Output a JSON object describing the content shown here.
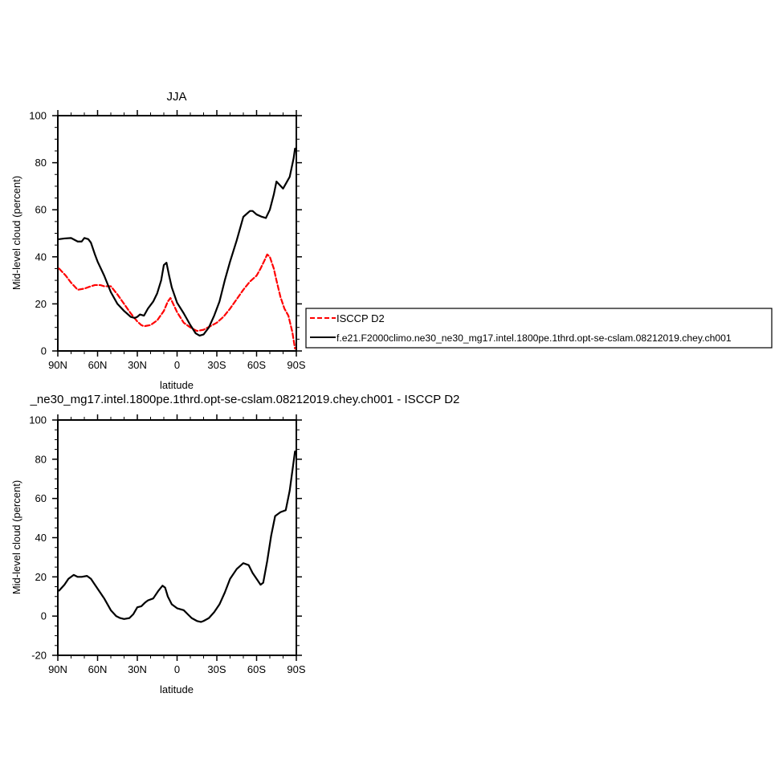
{
  "chart_data": [
    {
      "type": "line",
      "title": "JJA",
      "xlabel": "latitude",
      "ylabel": "Mid-level cloud (percent)",
      "xlim": [
        -90,
        90
      ],
      "ylim": [
        0,
        100
      ],
      "xticks": [
        -90,
        -60,
        -30,
        0,
        30,
        60,
        90
      ],
      "xtick_labels": [
        "90N",
        "60N",
        "30N",
        "0",
        "30S",
        "60S",
        "90S"
      ],
      "yticks": [
        0,
        20,
        40,
        60,
        80,
        100
      ],
      "ytick_labels": [
        "0",
        "20",
        "40",
        "60",
        "80",
        "100"
      ],
      "grid": false,
      "legend_position": "outside-right",
      "series": [
        {
          "name": "ISCCP D2",
          "color": "#ff0000",
          "dash": "dashed",
          "x": [
            -89,
            -84,
            -80,
            -75,
            -70,
            -65,
            -62,
            -58,
            -55,
            -50,
            -45,
            -40,
            -35,
            -30,
            -27,
            -25,
            -20,
            -15,
            -10,
            -7,
            -5,
            0,
            5,
            10,
            15,
            20,
            25,
            30,
            35,
            40,
            45,
            50,
            55,
            58,
            60,
            63,
            66,
            68,
            70,
            73,
            75,
            78,
            81,
            84,
            87,
            89
          ],
          "y": [
            35,
            32,
            29,
            26,
            26.5,
            27.5,
            28,
            28,
            27.5,
            27.5,
            24,
            20,
            16,
            12.5,
            11,
            10.5,
            11,
            13,
            17,
            21,
            22.5,
            16.5,
            12,
            10,
            8.5,
            9,
            10.5,
            12,
            14.5,
            18,
            22,
            26,
            29.5,
            31,
            32,
            35,
            38.5,
            41,
            40,
            35,
            30,
            23,
            18,
            15,
            8,
            1
          ]
        },
        {
          "name": "f.e21.F2000climo.ne30_ne30_mg17.intel.1800pe.1thrd.opt-se-cslam.08212019.chey.ch001",
          "color": "#000000",
          "dash": "solid",
          "x": [
            -89,
            -85,
            -80,
            -75,
            -72,
            -70,
            -67,
            -65,
            -62,
            -60,
            -55,
            -50,
            -45,
            -40,
            -35,
            -32,
            -30,
            -28,
            -25,
            -22,
            -18,
            -15,
            -12,
            -10,
            -8,
            -6,
            -4,
            0,
            5,
            10,
            14,
            17,
            20,
            24,
            28,
            32,
            36,
            40,
            45,
            50,
            55,
            57,
            60,
            64,
            67,
            70,
            73,
            75,
            80,
            85,
            88,
            89
          ],
          "y": [
            47.5,
            47.8,
            48,
            46.5,
            46.5,
            48,
            47.5,
            46,
            41,
            38,
            32,
            25,
            20,
            17,
            14.5,
            14,
            14.5,
            15.5,
            15,
            18,
            21,
            24.5,
            30,
            36.5,
            37.5,
            32,
            27,
            20.5,
            16,
            11,
            7.5,
            6.5,
            7,
            10,
            15,
            21,
            30,
            38,
            47,
            57,
            59.5,
            59.5,
            58,
            57,
            56.5,
            60,
            66.5,
            72,
            69,
            74,
            82,
            86
          ]
        }
      ]
    },
    {
      "type": "line",
      "title": "_ne30_mg17.intel.1800pe.1thrd.opt-se-cslam.08212019.chey.ch001 - ISCCP D2",
      "xlabel": "latitude",
      "ylabel": "Mid-level cloud (percent)",
      "xlim": [
        -90,
        90
      ],
      "ylim": [
        -20,
        100
      ],
      "xticks": [
        -90,
        -60,
        -30,
        0,
        30,
        60,
        90
      ],
      "xtick_labels": [
        "90N",
        "60N",
        "30N",
        "0",
        "30S",
        "60S",
        "90S"
      ],
      "yticks": [
        -20,
        0,
        20,
        40,
        60,
        80,
        100
      ],
      "ytick_labels": [
        "-20",
        "0",
        "20",
        "40",
        "60",
        "80",
        "100"
      ],
      "grid": false,
      "series": [
        {
          "color": "#000000",
          "dash": "solid",
          "x": [
            -89,
            -85,
            -82,
            -78,
            -75,
            -72,
            -68,
            -65,
            -62,
            -58,
            -55,
            -50,
            -46,
            -43,
            -40,
            -36,
            -33,
            -30,
            -27,
            -24,
            -22,
            -18,
            -14,
            -11,
            -9,
            -7,
            -4,
            0,
            5,
            8,
            11,
            15,
            18,
            20,
            24,
            28,
            32,
            36,
            40,
            45,
            50,
            54,
            57,
            60,
            63,
            65,
            68,
            71,
            74,
            78,
            82,
            85,
            88,
            89
          ],
          "y": [
            13,
            16,
            19,
            21,
            20,
            20,
            20.5,
            19,
            16,
            12,
            9,
            3,
            0,
            -1,
            -1.5,
            -1,
            1,
            4.5,
            5,
            7,
            8,
            9,
            13,
            15.5,
            14.5,
            10,
            6,
            4,
            3,
            1,
            -1,
            -2.5,
            -3,
            -2.5,
            -1,
            2,
            6,
            12,
            19,
            24,
            27,
            26,
            22,
            19,
            16,
            17,
            28,
            41,
            51,
            53,
            54,
            64,
            79,
            84
          ]
        }
      ]
    }
  ]
}
